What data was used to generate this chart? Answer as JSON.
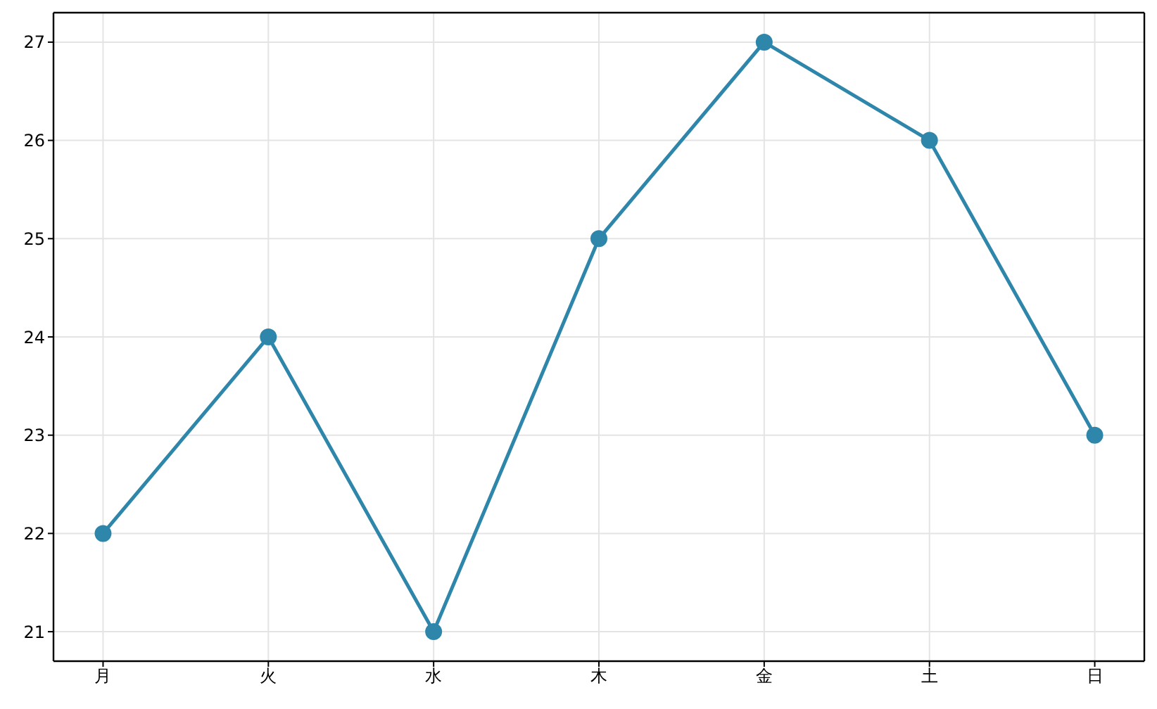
{
  "chart_data": {
    "type": "line",
    "categories": [
      "月",
      "火",
      "水",
      "木",
      "金",
      "土",
      "日"
    ],
    "series": [
      {
        "color": "#2e86ab",
        "values": [
          22,
          24,
          21,
          25,
          27,
          26,
          23
        ]
      }
    ],
    "ylim": [
      20.7,
      27.3
    ],
    "yticks": [
      21,
      22,
      23,
      24,
      25,
      26,
      27
    ],
    "grid": true,
    "marker": "circle",
    "line_style": "solid"
  }
}
